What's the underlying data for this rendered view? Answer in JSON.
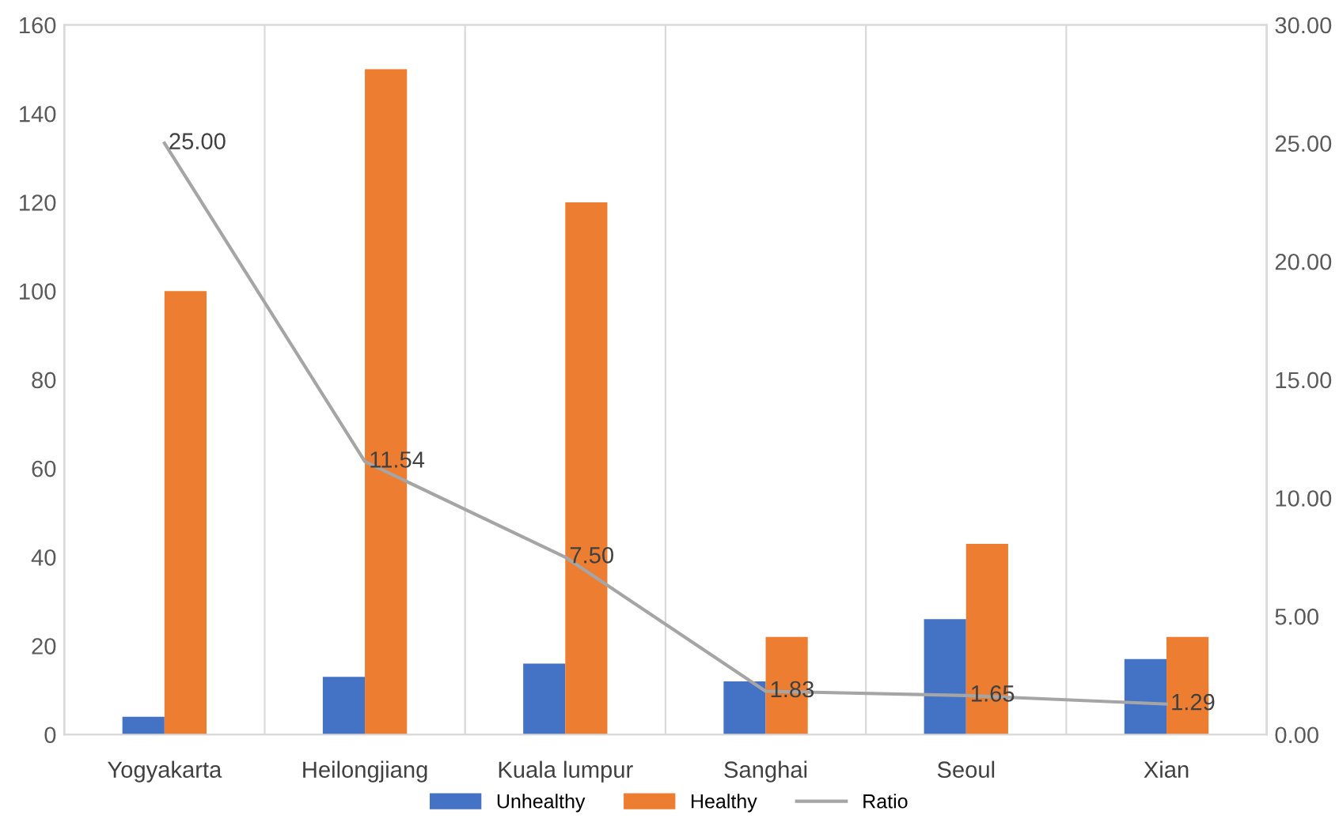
{
  "chart_data": {
    "type": "bar",
    "categories": [
      "Yogyakarta",
      "Heilongjiang",
      "Kuala lumpur",
      "Sanghai",
      "Seoul",
      "Xian"
    ],
    "series": [
      {
        "name": "Unhealthy",
        "color": "#4472c4",
        "values": [
          4,
          13,
          16,
          12,
          26,
          17
        ]
      },
      {
        "name": "Healthy",
        "color": "#ed7d31",
        "values": [
          100,
          150,
          120,
          22,
          43,
          22
        ]
      },
      {
        "name": "Ratio",
        "type": "line",
        "axis": "y2",
        "color": "#a5a5a5",
        "marker": "none",
        "line_style": "solid",
        "values": [
          25.0,
          11.54,
          7.5,
          1.83,
          1.65,
          1.29
        ],
        "value_labels": [
          "25.00",
          "11.54",
          "7.50",
          "1.83",
          "1.65",
          "1.29"
        ]
      }
    ],
    "ylim": [
      0,
      160
    ],
    "yticks": [
      0,
      20,
      40,
      60,
      80,
      100,
      120,
      140,
      160
    ],
    "y2lim": [
      0,
      30
    ],
    "y2ticks": [
      {
        "value": 0,
        "label": "0.00"
      },
      {
        "value": 5,
        "label": "5.00"
      },
      {
        "value": 10,
        "label": "10.00"
      },
      {
        "value": 15,
        "label": "15.00"
      },
      {
        "value": 20,
        "label": "20.00"
      },
      {
        "value": 25,
        "label": "25.00"
      },
      {
        "value": 30,
        "label": "30.00"
      }
    ],
    "grid": "x",
    "legend": "bottom"
  }
}
